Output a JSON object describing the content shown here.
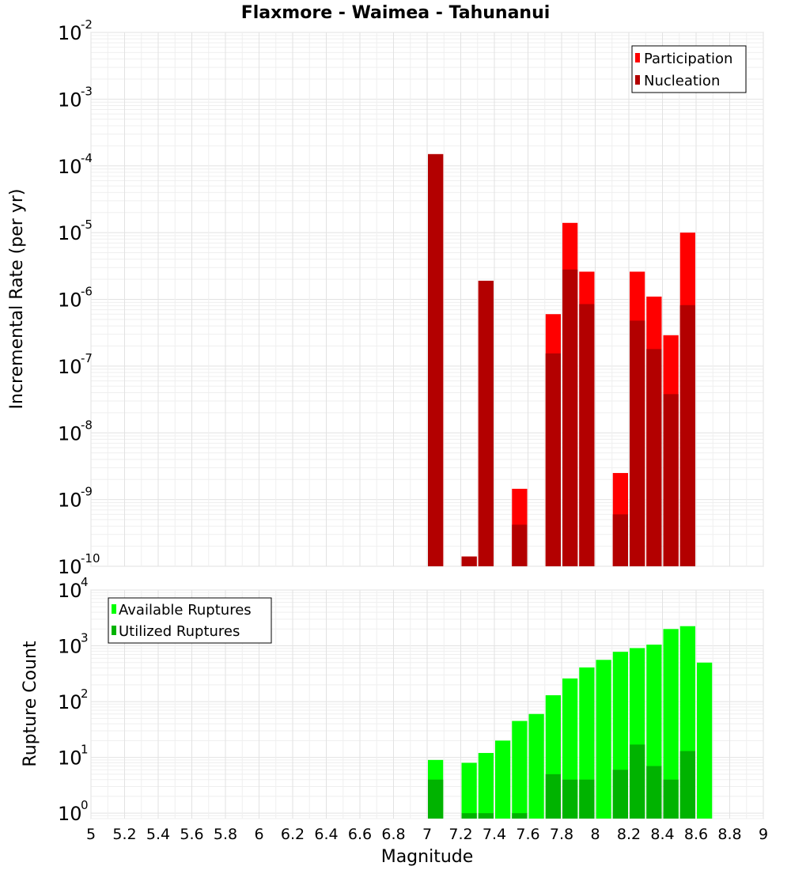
{
  "chart_data": {
    "type": "bar",
    "title": "Flaxmore - Waimea - Tahunanui",
    "xlabel": "Magnitude",
    "xlim": [
      5,
      9
    ],
    "x_ticks": [
      "5",
      "5.2",
      "5.4",
      "5.6",
      "5.8",
      "6",
      "6.2",
      "6.4",
      "6.6",
      "6.8",
      "7",
      "7.2",
      "7.4",
      "7.6",
      "7.8",
      "8",
      "8.2",
      "8.4",
      "8.6",
      "8.8",
      "9"
    ],
    "panels": [
      {
        "id": "rate",
        "ylabel": "Incremental Rate (per yr)",
        "yscale": "log",
        "ylim": [
          1e-10,
          0.01
        ],
        "y_ticks": [
          {
            "exp": -2,
            "base": "10",
            "sup": "-2"
          },
          {
            "exp": -3,
            "base": "10",
            "sup": "-3"
          },
          {
            "exp": -4,
            "base": "10",
            "sup": "-4"
          },
          {
            "exp": -5,
            "base": "10",
            "sup": "-5"
          },
          {
            "exp": -6,
            "base": "10",
            "sup": "-6"
          },
          {
            "exp": -7,
            "base": "10",
            "sup": "-7"
          },
          {
            "exp": -8,
            "base": "10",
            "sup": "-8"
          },
          {
            "exp": -9,
            "base": "10",
            "sup": "-9"
          },
          {
            "exp": -10,
            "base": "10",
            "sup": "-10"
          }
        ],
        "legend_position": "top-right",
        "series": [
          {
            "name": "Participation",
            "color": "#ff0000",
            "x": [
              7.05,
              7.25,
              7.35,
              7.55,
              7.75,
              7.85,
              7.95,
              8.15,
              8.25,
              8.35,
              8.45,
              8.55
            ],
            "values": [
              0.00015,
              1.4e-10,
              1.9e-06,
              1.45e-09,
              6e-07,
              1.4e-05,
              2.6e-06,
              2.5e-09,
              2.6e-06,
              1.1e-06,
              2.9e-07,
              1e-05
            ]
          },
          {
            "name": "Nucleation",
            "color": "#b30000",
            "x": [
              7.05,
              7.25,
              7.35,
              7.55,
              7.75,
              7.85,
              7.95,
              8.15,
              8.25,
              8.35,
              8.45,
              8.55
            ],
            "values": [
              0.00015,
              1.4e-10,
              1.9e-06,
              4.2e-10,
              1.55e-07,
              2.8e-06,
              8.5e-07,
              6e-10,
              4.8e-07,
              1.8e-07,
              3.8e-08,
              8.2e-07
            ]
          }
        ]
      },
      {
        "id": "count",
        "ylabel": "Rupture Count",
        "yscale": "log",
        "ylim": [
          0.8,
          10000
        ],
        "y_ticks": [
          {
            "exp": 4,
            "base": "10",
            "sup": "4"
          },
          {
            "exp": 3,
            "base": "10",
            "sup": "3"
          },
          {
            "exp": 2,
            "base": "10",
            "sup": "2"
          },
          {
            "exp": 1,
            "base": "10",
            "sup": "1"
          },
          {
            "exp": 0,
            "base": "10",
            "sup": "0"
          }
        ],
        "legend_position": "top-left",
        "series": [
          {
            "name": "Available Ruptures",
            "color": "#00ff00",
            "x": [
              7.05,
              7.25,
              7.35,
              7.45,
              7.55,
              7.65,
              7.75,
              7.85,
              7.95,
              8.05,
              8.15,
              8.25,
              8.35,
              8.45,
              8.55,
              8.65
            ],
            "values": [
              9,
              8,
              12,
              20,
              45,
              60,
              130,
              260,
              410,
              560,
              780,
              910,
              1050,
              2000,
              2250,
              500
            ]
          },
          {
            "name": "Utilized Ruptures",
            "color": "#00b300",
            "x": [
              7.05,
              7.25,
              7.35,
              7.55,
              7.75,
              7.85,
              7.95,
              8.15,
              8.25,
              8.35,
              8.45,
              8.55
            ],
            "values": [
              4,
              1,
              1,
              1,
              5,
              4,
              4,
              6,
              17,
              7,
              4,
              13
            ]
          }
        ]
      }
    ]
  }
}
